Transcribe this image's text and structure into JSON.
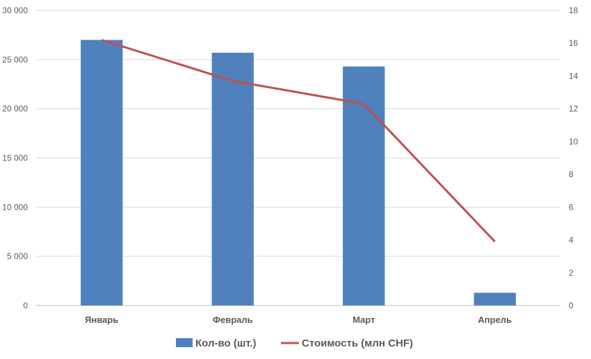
{
  "chart_data": {
    "type": "bar",
    "categories": [
      "Январь",
      "Февраль",
      "Март",
      "Апрель"
    ],
    "series": [
      {
        "name": "Кол-во (шт.)",
        "type": "bar",
        "axis": "left",
        "color": "#4f81bd",
        "values": [
          27000,
          25700,
          24300,
          1300
        ]
      },
      {
        "name": "Стоимость (млн CHF)",
        "type": "line",
        "axis": "right",
        "color": "#c0504d",
        "values": [
          16.2,
          13.7,
          12.3,
          3.9
        ]
      }
    ],
    "y_left": {
      "min": 0,
      "max": 30000,
      "ticks": [
        "0",
        "5 000",
        "10 000",
        "15 000",
        "20 000",
        "25 000",
        "30 000"
      ],
      "tick_values": [
        0,
        5000,
        10000,
        15000,
        20000,
        25000,
        30000
      ]
    },
    "y_right": {
      "min": 0,
      "max": 18,
      "ticks": [
        "0",
        "2",
        "4",
        "6",
        "8",
        "10",
        "12",
        "14",
        "16",
        "18"
      ],
      "tick_values": [
        0,
        2,
        4,
        6,
        8,
        10,
        12,
        14,
        16,
        18
      ]
    },
    "grid": true,
    "legend_position": "bottom"
  }
}
